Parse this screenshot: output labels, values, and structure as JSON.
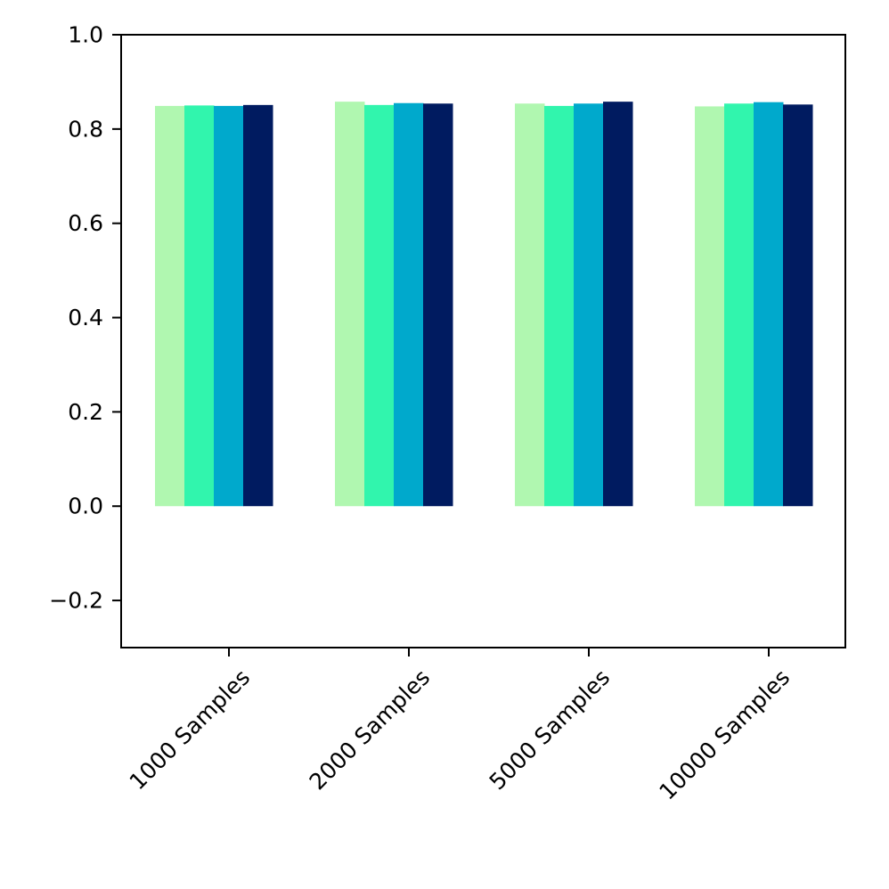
{
  "chart_data": {
    "type": "bar",
    "title": "",
    "xlabel": "",
    "ylabel": "",
    "categories": [
      "1000 Samples",
      "2000 Samples",
      "5000 Samples",
      "10000 Samples"
    ],
    "series": [
      {
        "color": "#b0f7b0",
        "values": [
          0.849,
          0.858,
          0.854,
          0.848
        ]
      },
      {
        "color": "#31f5ad",
        "values": [
          0.85,
          0.851,
          0.849,
          0.854
        ]
      },
      {
        "color": "#00a9cc",
        "values": [
          0.849,
          0.855,
          0.854,
          0.857
        ]
      },
      {
        "color": "#001b60",
        "values": [
          0.851,
          0.854,
          0.858,
          0.852
        ]
      }
    ],
    "ylim": [
      -0.3,
      1.0
    ],
    "yticks": [
      -0.2,
      0.0,
      0.2,
      0.4,
      0.6,
      0.8,
      1.0
    ],
    "ytick_labels": [
      "−0.2",
      "0.0",
      "0.2",
      "0.4",
      "0.6",
      "0.8",
      "1.0"
    ],
    "xtick_rotation": 45,
    "grid": false,
    "legend": "none"
  }
}
